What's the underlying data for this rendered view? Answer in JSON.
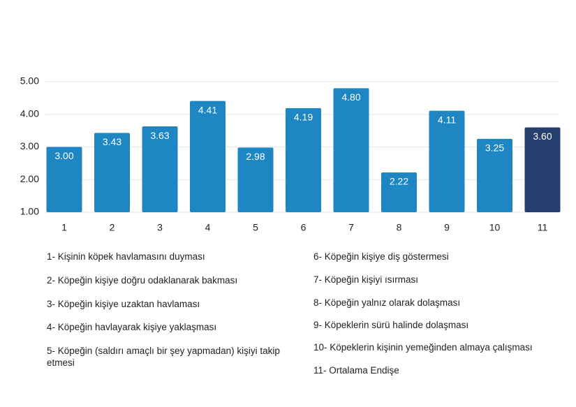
{
  "chart_data": {
    "type": "bar",
    "categories": [
      "1",
      "2",
      "3",
      "4",
      "5",
      "6",
      "7",
      "8",
      "9",
      "10",
      "11"
    ],
    "values": [
      3.0,
      3.43,
      3.63,
      4.41,
      2.98,
      4.19,
      4.8,
      2.22,
      4.11,
      3.25,
      3.6
    ],
    "value_labels": [
      "3.00",
      "3.43",
      "3.63",
      "4.41",
      "2.98",
      "4.19",
      "4.80",
      "2.22",
      "4.11",
      "3.25",
      "3.60"
    ],
    "colors": [
      "#1f86c4",
      "#1f86c4",
      "#1f86c4",
      "#1f86c4",
      "#1f86c4",
      "#1f86c4",
      "#1f86c4",
      "#1f86c4",
      "#1f86c4",
      "#1f86c4",
      "#253f6e"
    ],
    "ylim": [
      1,
      5
    ],
    "yticks": [
      {
        "value": 1,
        "label": "1.00"
      },
      {
        "value": 2,
        "label": "2.00"
      },
      {
        "value": 3,
        "label": "3.00"
      },
      {
        "value": 4,
        "label": "4.00"
      },
      {
        "value": 5,
        "label": "5.00"
      }
    ],
    "grid": true,
    "legend_items": [
      "1- Kişinin köpek havlamasını duyması",
      "2- Köpeğin kişiye doğru odaklanarak bakması",
      "3- Köpeğin kişiye uzaktan havlaması",
      "4- Köpeğin havlayarak kişiye yaklaşması",
      "5- Köpeğin (saldırı amaçlı bir şey yapmadan) kişiyi takip etmesi",
      "6- Köpeğin kişiye diş göstermesi",
      "7- Köpeğin kişiyi ısırması",
      "8- Köpeğin yalnız olarak dolaşması",
      "9- Köpeklerin sürü halinde dolaşması",
      "10- Köpeklerin kişinin yemeğinden almaya çalışması",
      "11- Ortalama Endişe"
    ]
  }
}
